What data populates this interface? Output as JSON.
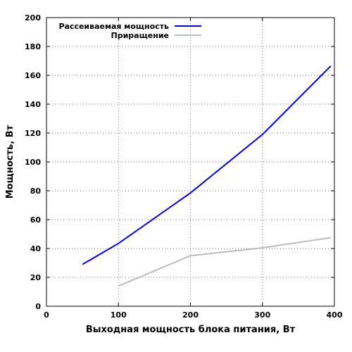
{
  "chart_data": {
    "type": "line",
    "xlabel": "Выходная мощность блока питания, Вт",
    "ylabel": "Мощность, Вт",
    "xlim": [
      0,
      400
    ],
    "ylim": [
      0,
      200
    ],
    "x_ticks": [
      0,
      100,
      200,
      300,
      400
    ],
    "y_ticks": [
      0,
      20,
      40,
      60,
      80,
      100,
      120,
      140,
      160,
      180,
      200
    ],
    "grid": true,
    "legend_position": "top-right",
    "series": [
      {
        "name": "Рассеиваемая мощность",
        "color": "#0000dd",
        "x": [
          50,
          100,
          200,
          300,
          395
        ],
        "y": [
          29,
          43.5,
          78.5,
          119,
          166.5
        ]
      },
      {
        "name": "Приращение",
        "color": "#bbbbbb",
        "x": [
          100,
          200,
          300,
          395
        ],
        "y": [
          14,
          35,
          40.5,
          47.5
        ]
      }
    ]
  }
}
